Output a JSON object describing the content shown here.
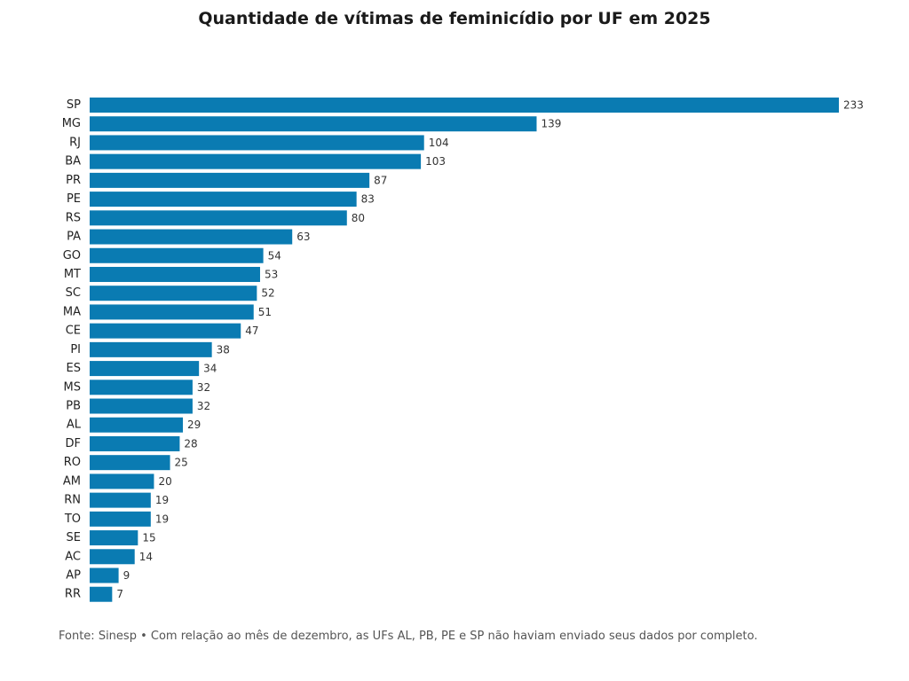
{
  "header": {
    "title": "Quantidade de vítimas de feminicídio por UF em 2025"
  },
  "footer": {
    "source_note": "Fonte: Sinesp • Com relação ao mês de dezembro, as UFs AL, PB, PE e SP não haviam enviado seus dados por completo."
  },
  "chart_data": {
    "type": "bar",
    "orientation": "horizontal",
    "title": "Quantidade de vítimas de feminicídio por UF em 2025",
    "xlabel": "",
    "ylabel": "",
    "grid": false,
    "legend": "none",
    "bar_color": "#0a7bb2",
    "categories": [
      "SP",
      "MG",
      "RJ",
      "BA",
      "PR",
      "PE",
      "RS",
      "PA",
      "GO",
      "MT",
      "SC",
      "MA",
      "CE",
      "PI",
      "ES",
      "MS",
      "PB",
      "AL",
      "DF",
      "RO",
      "AM",
      "RN",
      "TO",
      "SE",
      "AC",
      "AP",
      "RR"
    ],
    "values": [
      233,
      139,
      104,
      103,
      87,
      83,
      80,
      63,
      54,
      53,
      52,
      51,
      47,
      38,
      34,
      32,
      32,
      29,
      28,
      25,
      20,
      19,
      19,
      15,
      14,
      9,
      7
    ],
    "xlim": [
      0,
      233
    ]
  }
}
